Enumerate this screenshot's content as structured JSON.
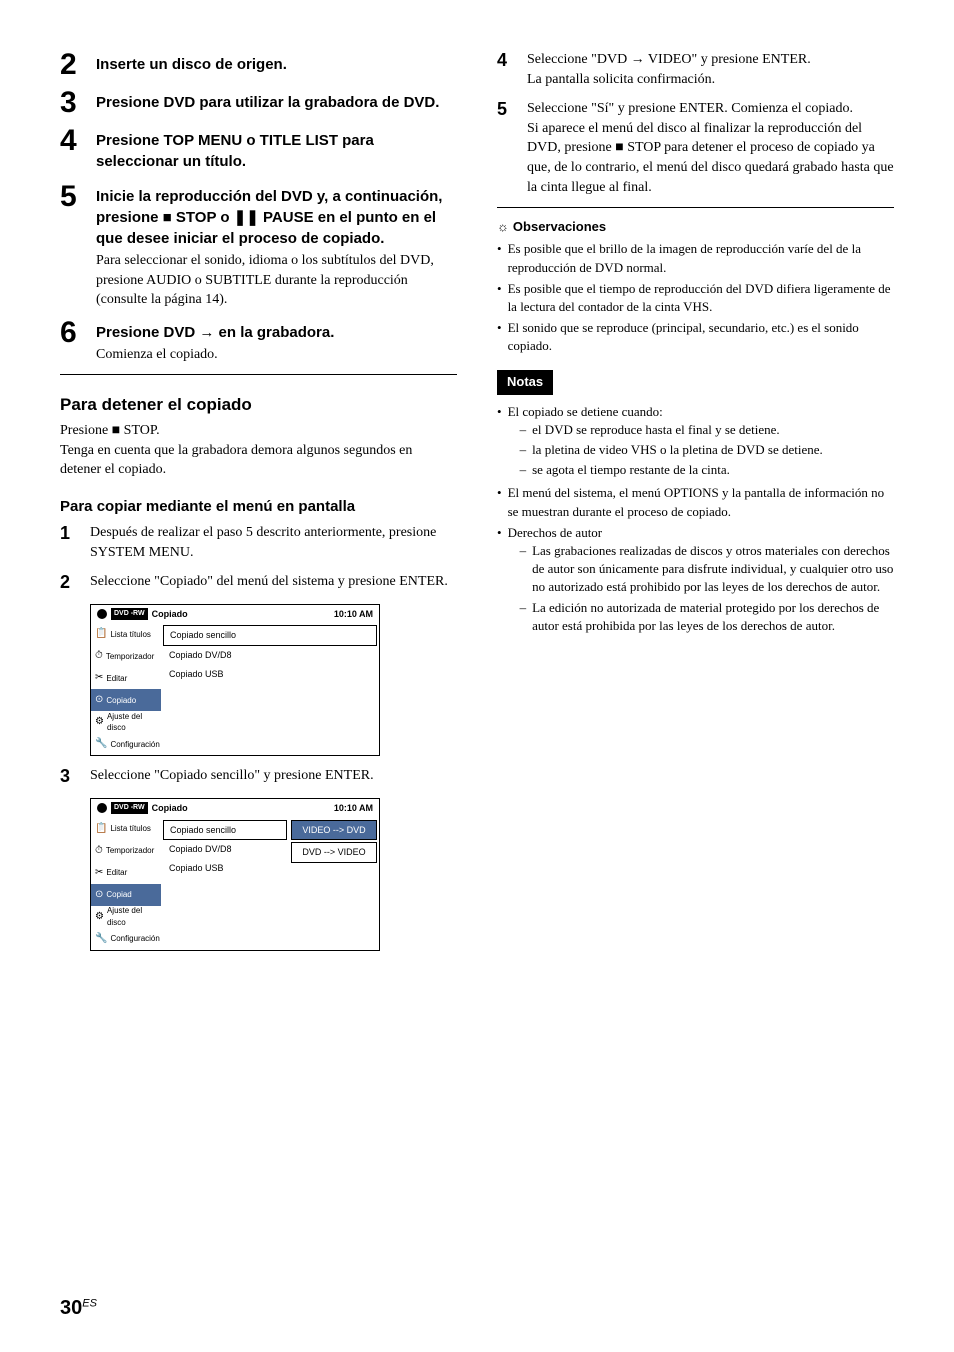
{
  "left": {
    "steps": [
      {
        "num": "2",
        "title": "Inserte un disco de origen."
      },
      {
        "num": "3",
        "title": "Presione DVD para utilizar la grabadora de DVD."
      },
      {
        "num": "4",
        "title": "Presione TOP MENU o TITLE LIST para seleccionar un título."
      },
      {
        "num": "5",
        "title": "Inicie la reproducción del DVD y, a continuación, presione ■ STOP o ❚❚ PAUSE en el punto en el que desee iniciar el proceso de copiado.",
        "text": "Para seleccionar el sonido, idioma o los subtítulos del DVD, presione AUDIO o SUBTITLE durante la reproducción (consulte la página 14)."
      },
      {
        "num": "6",
        "title": "Presione DVD → en la grabadora.",
        "text": "Comienza el copiado."
      }
    ],
    "stopHeading": "Para detener el copiado",
    "stopText1": "Presione ■ STOP.",
    "stopText2": "Tenga en cuenta que la grabadora demora algunos segundos en detener el copiado.",
    "menuHeading": "Para copiar mediante el menú en pantalla",
    "subSteps": [
      {
        "num": "1",
        "text": "Después de realizar el paso 5 descrito anteriormente, presione SYSTEM MENU."
      },
      {
        "num": "2",
        "text": "Seleccione \"Copiado\" del menú del sistema y presione ENTER."
      },
      {
        "num": "3",
        "text": "Seleccione \"Copiado sencillo\" y presione ENTER."
      }
    ]
  },
  "menu1": {
    "headerBadge": "DVD -RW",
    "headerTitle": "Copiado",
    "headerTime": "10:10 AM",
    "sideItems": [
      "Lista títulos",
      "Temporizador",
      "Editar",
      "Copiado",
      "Ajuste del disco",
      "Configuración"
    ],
    "activeIndex": 3,
    "options": [
      "Copiado sencillo",
      "Copiado DV/D8",
      "Copiado USB"
    ]
  },
  "menu2": {
    "headerBadge": "DVD -RW",
    "headerTitle": "Copiado",
    "headerTime": "10:10 AM",
    "sideItems": [
      "Lista títulos",
      "Temporizador",
      "Editar",
      "Copiad",
      "Ajuste del disco",
      "Configuración"
    ],
    "activeIndex": 3,
    "options": [
      "Copiado sencillo",
      "Copiado DV/D8",
      "Copiado USB"
    ],
    "rightOptions": [
      "VIDEO --> DVD",
      "DVD    --> VIDEO"
    ],
    "rightActiveIndex": 0
  },
  "right": {
    "steps": [
      {
        "num": "4",
        "text1": "Seleccione \"DVD → VIDEO\" y presione ENTER.",
        "text2": "La pantalla solicita confirmación."
      },
      {
        "num": "5",
        "text1": "Seleccione \"Sí\" y presione ENTER. Comienza el copiado.",
        "text2": "Si aparece el menú del disco al finalizar la reproducción del DVD, presione ■ STOP para detener el proceso de copiado ya que, de lo contrario, el menú del disco quedará grabado hasta que la cinta llegue al final."
      }
    ],
    "obsTitle": "Observaciones",
    "obs": [
      "Es posible que el brillo de la imagen de reproducción varíe del de la reproducción de DVD normal.",
      "Es posible que el tiempo de reproducción del DVD difiera ligeramente de la lectura del contador de la cinta VHS.",
      "El sonido que se reproduce (principal, secundario, etc.) es el sonido copiado."
    ],
    "notasLabel": "Notas",
    "notas": [
      {
        "text": "El copiado se detiene cuando:",
        "sub": [
          "el DVD se reproduce hasta el final y se detiene.",
          "la pletina de video VHS o la pletina de DVD se detiene.",
          "se agota el tiempo restante de la cinta."
        ]
      },
      {
        "text": "El menú del sistema, el menú OPTIONS y la pantalla de información no se muestran durante el proceso de copiado."
      },
      {
        "text": "Derechos de autor",
        "sub": [
          "Las grabaciones realizadas de discos y otros materiales con derechos de autor son únicamente para disfrute individual, y cualquier otro uso no autorizado está prohibido por las leyes de los derechos de autor.",
          "La edición no autorizada de material protegido por los derechos de autor está prohibida por las leyes de los derechos de autor."
        ]
      }
    ]
  },
  "pageNum": "30",
  "pageSup": "ES",
  "icons": {
    "side": [
      "📋",
      "⏱",
      "✂",
      "⊙",
      "⚙",
      "🔧"
    ]
  }
}
